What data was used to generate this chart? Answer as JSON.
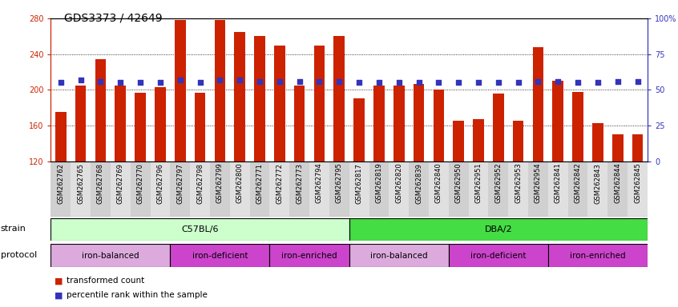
{
  "title": "GDS3373 / 42649",
  "samples": [
    "GSM262762",
    "GSM262765",
    "GSM262768",
    "GSM262769",
    "GSM262770",
    "GSM262796",
    "GSM262797",
    "GSM262798",
    "GSM262799",
    "GSM262800",
    "GSM262771",
    "GSM262772",
    "GSM262773",
    "GSM262794",
    "GSM262795",
    "GSM262817",
    "GSM262819",
    "GSM262820",
    "GSM262839",
    "GSM262840",
    "GSM262950",
    "GSM262951",
    "GSM262952",
    "GSM262953",
    "GSM262954",
    "GSM262841",
    "GSM262842",
    "GSM262843",
    "GSM262844",
    "GSM262845"
  ],
  "bar_values": [
    175,
    205,
    234,
    205,
    197,
    203,
    278,
    197,
    278,
    265,
    260,
    250,
    205,
    250,
    260,
    190,
    205,
    205,
    207,
    200,
    165,
    167,
    196,
    165,
    248,
    210,
    198,
    163,
    150,
    150
  ],
  "dot_values_percentile": [
    55,
    57,
    56,
    55,
    55,
    55,
    57,
    55,
    57,
    57,
    56,
    56,
    56,
    56,
    56,
    55,
    55,
    55,
    55,
    55,
    55,
    55,
    55,
    55,
    56,
    56,
    55,
    55,
    56,
    56
  ],
  "ylim_left": [
    120,
    280
  ],
  "ylim_right": [
    0,
    100
  ],
  "yticks_left": [
    120,
    160,
    200,
    240,
    280
  ],
  "yticks_right": [
    0,
    25,
    50,
    75,
    100
  ],
  "ytick_labels_right": [
    "0",
    "25",
    "50",
    "75",
    "100%"
  ],
  "bar_color": "#cc2200",
  "dot_color": "#3333bb",
  "strain_groups": [
    {
      "label": "C57BL/6",
      "start": 0,
      "end": 15,
      "color": "#ccffcc"
    },
    {
      "label": "DBA/2",
      "start": 15,
      "end": 30,
      "color": "#44dd44"
    }
  ],
  "protocol_groups": [
    {
      "label": "iron-balanced",
      "start": 0,
      "end": 6,
      "color": "#ddaadd"
    },
    {
      "label": "iron-deficient",
      "start": 6,
      "end": 11,
      "color": "#dd44dd"
    },
    {
      "label": "iron-enriched",
      "start": 11,
      "end": 15,
      "color": "#dd44dd"
    },
    {
      "label": "iron-balanced",
      "start": 15,
      "end": 20,
      "color": "#ddaadd"
    },
    {
      "label": "iron-deficient",
      "start": 20,
      "end": 25,
      "color": "#dd44dd"
    },
    {
      "label": "iron-enriched",
      "start": 25,
      "end": 30,
      "color": "#dd44dd"
    }
  ],
  "background_color": "#ffffff",
  "title_fontsize": 10,
  "tick_fontsize": 7,
  "bar_width": 0.55
}
